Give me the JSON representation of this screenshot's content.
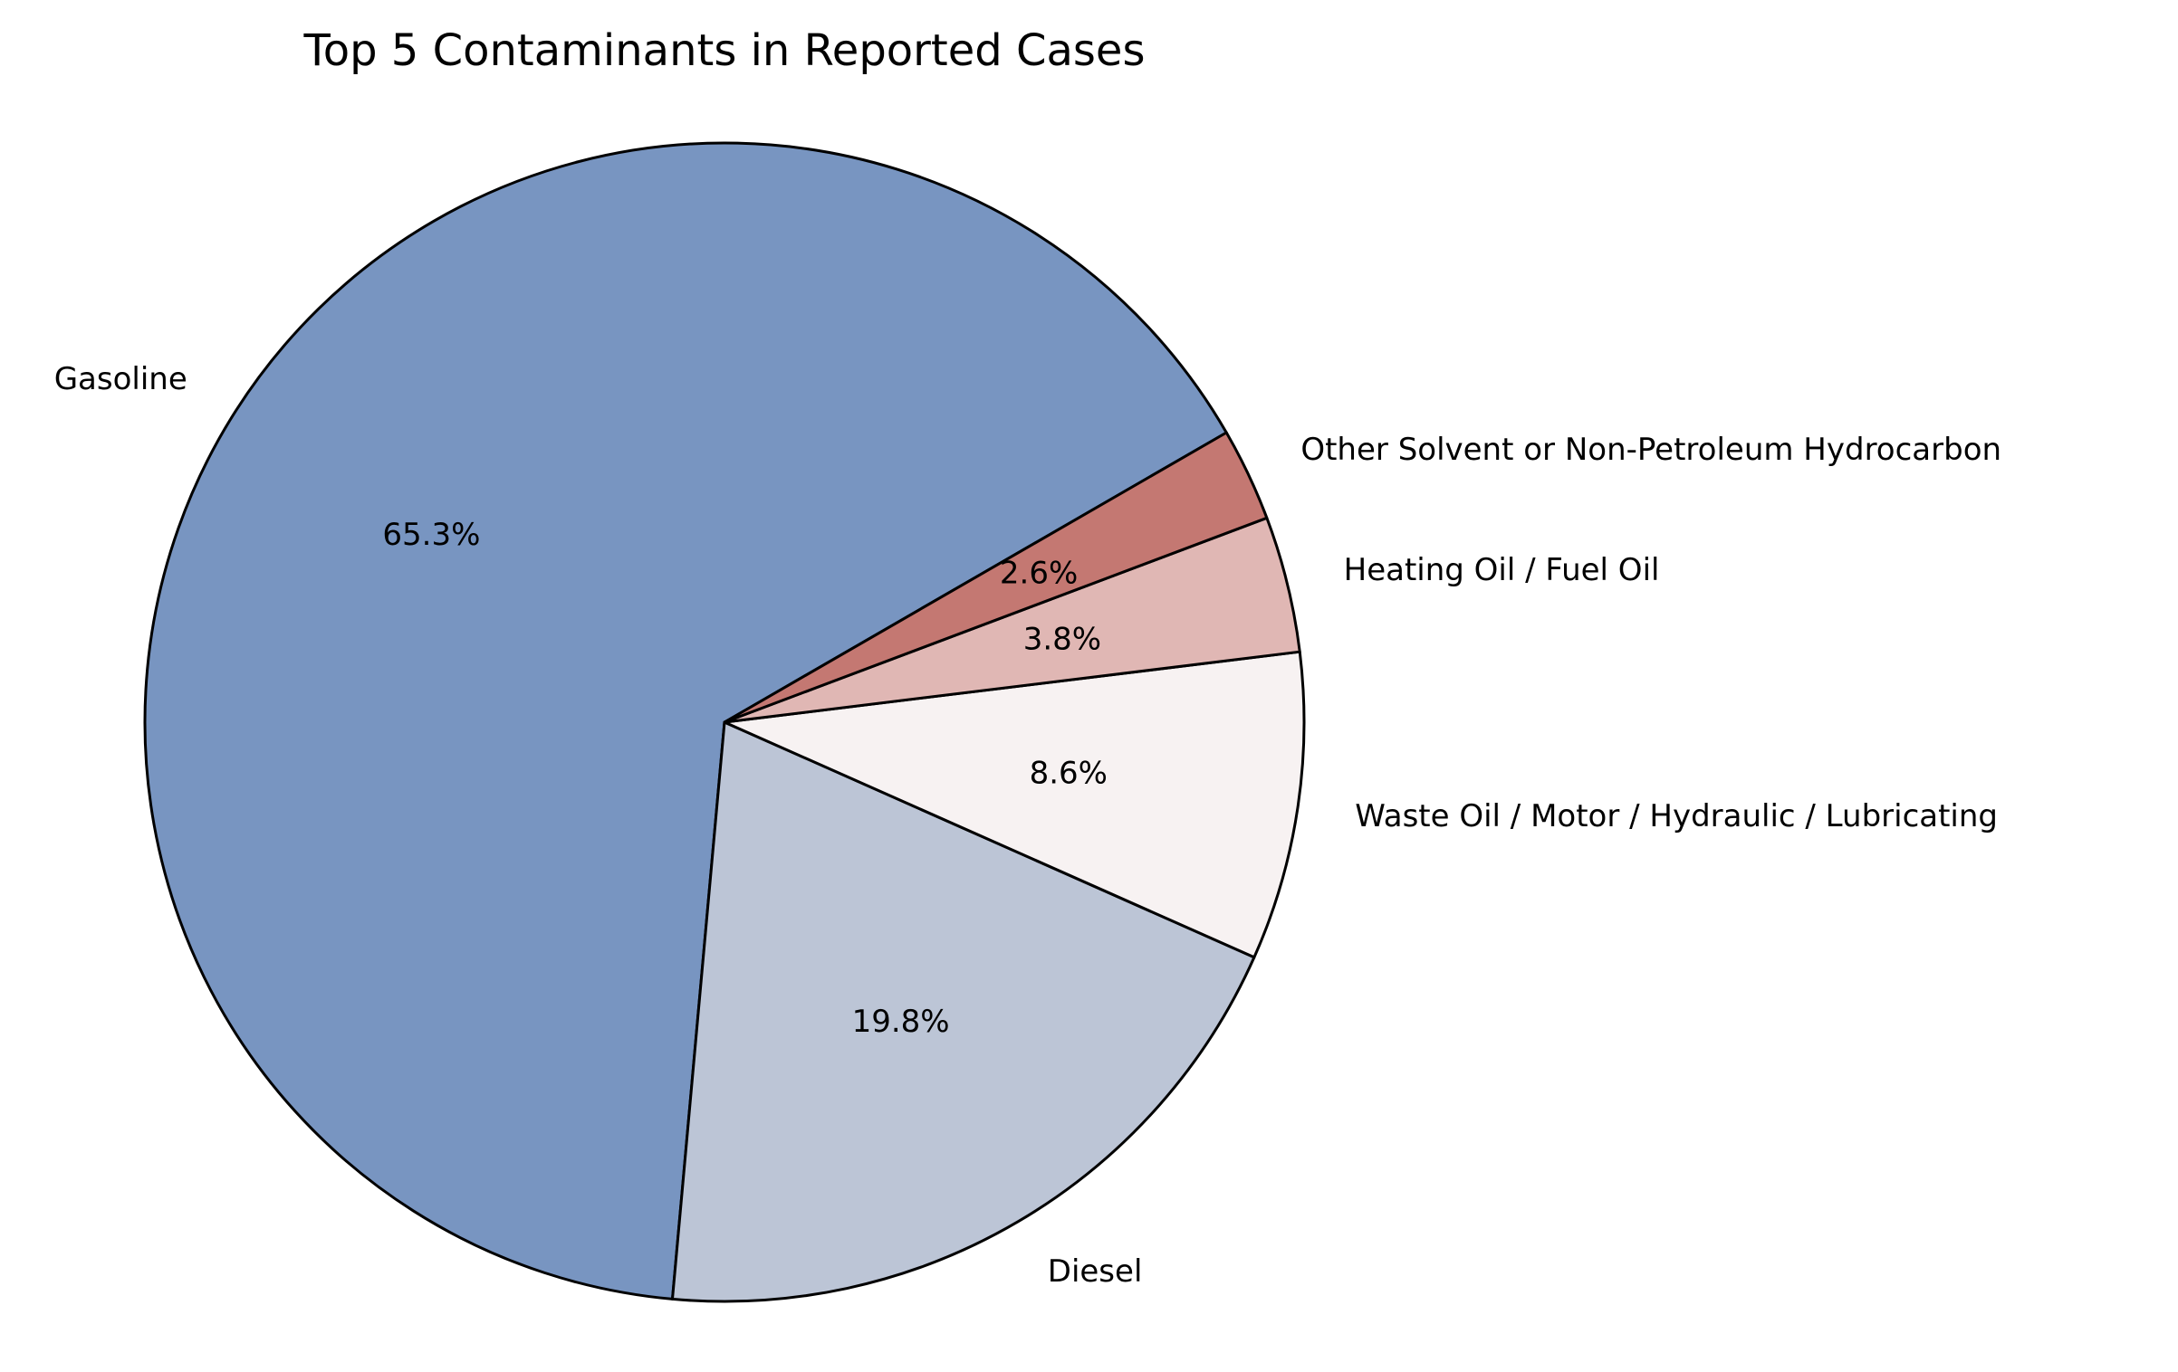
{
  "chart_data": {
    "type": "pie",
    "title": "Top 5 Contaminants in Reported Cases",
    "start_angle_deg": 30,
    "direction": "counterclockwise",
    "slices": [
      {
        "label": "Gasoline",
        "value": 65.3,
        "pct_text": "65.3%",
        "color": "#7895c1"
      },
      {
        "label": "Diesel",
        "value": 19.8,
        "pct_text": "19.8%",
        "color": "#bcc5d6"
      },
      {
        "label": "Waste Oil / Motor / Hydraulic / Lubricating",
        "value": 8.6,
        "pct_text": "8.6%",
        "color": "#f7f2f2"
      },
      {
        "label": "Heating Oil / Fuel Oil",
        "value": 3.8,
        "pct_text": "3.8%",
        "color": "#e0b7b4"
      },
      {
        "label": "Other Solvent or Non-Petroleum Hydrocarbon",
        "value": 2.6,
        "pct_text": "2.6%",
        "color": "#c47872"
      }
    ],
    "edge_color": "#000000",
    "legend": "none"
  }
}
